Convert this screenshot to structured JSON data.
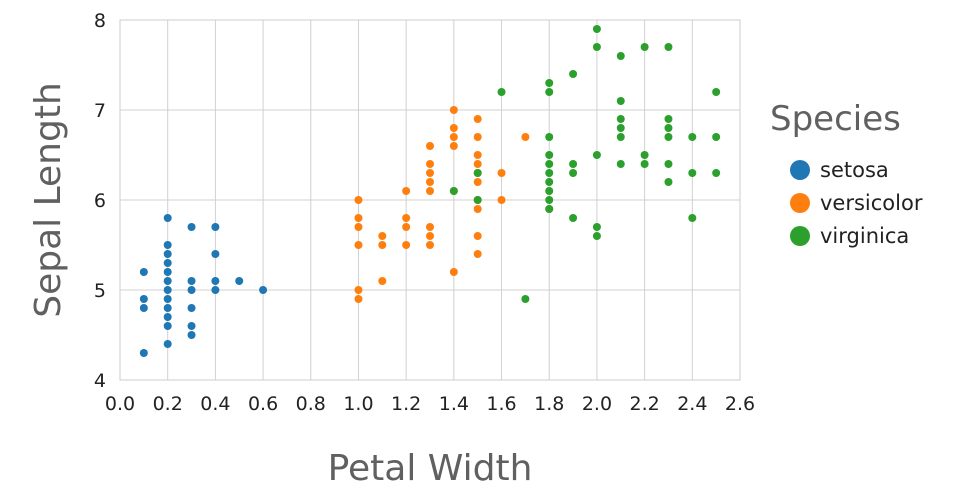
{
  "chart_data": {
    "type": "scatter",
    "xlabel": "Petal Width",
    "ylabel": "Sepal Length",
    "xlim": [
      0.0,
      2.6
    ],
    "ylim": [
      4,
      8
    ],
    "xticks": [
      "0.0",
      "0.2",
      "0.4",
      "0.6",
      "0.8",
      "1.0",
      "1.2",
      "1.4",
      "1.6",
      "1.8",
      "2.0",
      "2.2",
      "2.4",
      "2.6"
    ],
    "yticks": [
      "4",
      "5",
      "6",
      "7",
      "8"
    ],
    "grid": true,
    "legend": {
      "title": "Species",
      "position": "right"
    },
    "series": [
      {
        "name": "setosa",
        "color": "#1f77b4",
        "points": [
          [
            0.1,
            5.2
          ],
          [
            0.1,
            4.9
          ],
          [
            0.1,
            4.8
          ],
          [
            0.1,
            4.3
          ],
          [
            0.2,
            5.8
          ],
          [
            0.2,
            5.5
          ],
          [
            0.2,
            5.4
          ],
          [
            0.2,
            5.3
          ],
          [
            0.2,
            5.2
          ],
          [
            0.2,
            5.1
          ],
          [
            0.2,
            5.0
          ],
          [
            0.2,
            4.9
          ],
          [
            0.2,
            4.8
          ],
          [
            0.2,
            4.7
          ],
          [
            0.2,
            4.6
          ],
          [
            0.2,
            4.4
          ],
          [
            0.3,
            5.7
          ],
          [
            0.3,
            5.1
          ],
          [
            0.3,
            5.0
          ],
          [
            0.3,
            4.8
          ],
          [
            0.3,
            4.6
          ],
          [
            0.3,
            4.5
          ],
          [
            0.4,
            5.7
          ],
          [
            0.4,
            5.4
          ],
          [
            0.4,
            5.1
          ],
          [
            0.4,
            5.0
          ],
          [
            0.5,
            5.1
          ],
          [
            0.6,
            5.0
          ]
        ]
      },
      {
        "name": "versicolor",
        "color": "#ff7f0e",
        "points": [
          [
            1.0,
            6.0
          ],
          [
            1.0,
            5.8
          ],
          [
            1.0,
            5.7
          ],
          [
            1.0,
            5.5
          ],
          [
            1.0,
            5.0
          ],
          [
            1.0,
            4.9
          ],
          [
            1.1,
            5.6
          ],
          [
            1.1,
            5.5
          ],
          [
            1.1,
            5.1
          ],
          [
            1.2,
            6.1
          ],
          [
            1.2,
            5.8
          ],
          [
            1.2,
            5.7
          ],
          [
            1.2,
            5.5
          ],
          [
            1.3,
            6.6
          ],
          [
            1.3,
            6.4
          ],
          [
            1.3,
            6.3
          ],
          [
            1.3,
            6.2
          ],
          [
            1.3,
            6.1
          ],
          [
            1.3,
            5.7
          ],
          [
            1.3,
            5.6
          ],
          [
            1.3,
            5.5
          ],
          [
            1.4,
            7.0
          ],
          [
            1.4,
            6.8
          ],
          [
            1.4,
            6.7
          ],
          [
            1.4,
            6.6
          ],
          [
            1.4,
            6.1
          ],
          [
            1.4,
            5.2
          ],
          [
            1.5,
            6.9
          ],
          [
            1.5,
            6.7
          ],
          [
            1.5,
            6.5
          ],
          [
            1.5,
            6.4
          ],
          [
            1.5,
            6.3
          ],
          [
            1.5,
            6.2
          ],
          [
            1.5,
            6.0
          ],
          [
            1.5,
            5.9
          ],
          [
            1.5,
            5.6
          ],
          [
            1.5,
            5.4
          ],
          [
            1.6,
            6.3
          ],
          [
            1.6,
            6.0
          ],
          [
            1.7,
            6.7
          ],
          [
            1.8,
            5.9
          ]
        ]
      },
      {
        "name": "virginica",
        "color": "#2ca02c",
        "points": [
          [
            1.4,
            6.1
          ],
          [
            1.5,
            6.3
          ],
          [
            1.5,
            6.0
          ],
          [
            1.6,
            7.2
          ],
          [
            1.7,
            4.9
          ],
          [
            1.8,
            7.3
          ],
          [
            1.8,
            7.2
          ],
          [
            1.8,
            6.7
          ],
          [
            1.8,
            6.5
          ],
          [
            1.8,
            6.4
          ],
          [
            1.8,
            6.3
          ],
          [
            1.8,
            6.2
          ],
          [
            1.8,
            6.1
          ],
          [
            1.8,
            6.0
          ],
          [
            1.8,
            5.9
          ],
          [
            1.9,
            7.4
          ],
          [
            1.9,
            6.4
          ],
          [
            1.9,
            6.3
          ],
          [
            1.9,
            5.8
          ],
          [
            2.0,
            7.9
          ],
          [
            2.0,
            7.7
          ],
          [
            2.0,
            6.5
          ],
          [
            2.0,
            5.7
          ],
          [
            2.0,
            5.6
          ],
          [
            2.1,
            7.6
          ],
          [
            2.1,
            7.1
          ],
          [
            2.1,
            6.9
          ],
          [
            2.1,
            6.8
          ],
          [
            2.1,
            6.7
          ],
          [
            2.1,
            6.4
          ],
          [
            2.2,
            7.7
          ],
          [
            2.2,
            6.5
          ],
          [
            2.2,
            6.4
          ],
          [
            2.3,
            7.7
          ],
          [
            2.3,
            6.9
          ],
          [
            2.3,
            6.8
          ],
          [
            2.3,
            6.7
          ],
          [
            2.3,
            6.4
          ],
          [
            2.3,
            6.2
          ],
          [
            2.4,
            6.7
          ],
          [
            2.4,
            6.3
          ],
          [
            2.4,
            5.8
          ],
          [
            2.5,
            7.2
          ],
          [
            2.5,
            6.7
          ],
          [
            2.5,
            6.3
          ]
        ]
      }
    ]
  }
}
